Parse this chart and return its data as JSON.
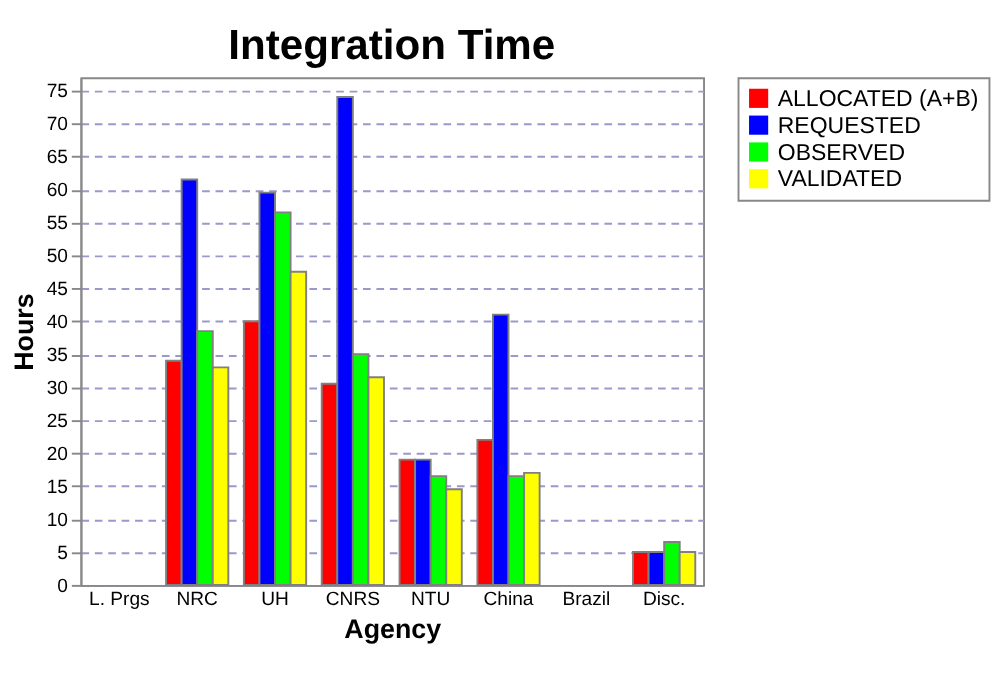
{
  "chart_data": {
    "type": "bar",
    "title": "Integration Time",
    "xlabel": "Agency",
    "ylabel": "Hours",
    "categories": [
      "L. Prgs",
      "NRC",
      "UH",
      "CNRS",
      "NTU",
      "China",
      "Brazil",
      "Disc."
    ],
    "series": [
      {
        "name": "ALLOCATED (A+B)",
        "color": "#ff0000",
        "values": [
          null,
          34,
          40,
          30.5,
          19,
          22,
          null,
          5
        ]
      },
      {
        "name": "REQUESTED",
        "color": "#0000ff",
        "values": [
          null,
          61.5,
          59.5,
          74,
          19,
          41,
          null,
          5
        ]
      },
      {
        "name": "OBSERVED",
        "color": "#00ff00",
        "values": [
          null,
          38.5,
          56.5,
          35,
          16.5,
          16.5,
          null,
          6.5
        ]
      },
      {
        "name": "VALIDATED",
        "color": "#ffff00",
        "values": [
          null,
          33,
          47.5,
          31.5,
          14.5,
          17,
          null,
          5
        ]
      }
    ],
    "ylim": [
      0,
      77
    ],
    "yticks": [
      0,
      5,
      10,
      15,
      20,
      25,
      30,
      35,
      40,
      45,
      50,
      55,
      60,
      65,
      70,
      75
    ],
    "grid": "y",
    "legend": "right"
  }
}
